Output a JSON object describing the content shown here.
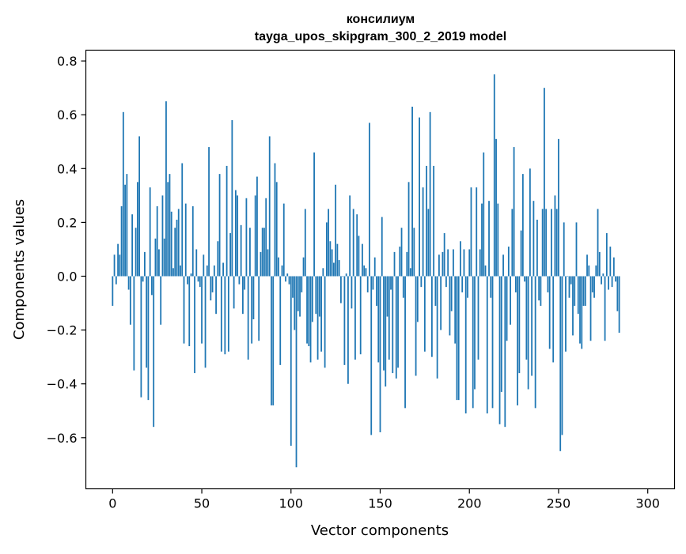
{
  "chart_data": {
    "type": "bar",
    "title": "консилиум",
    "subtitle": "tayga_upos_skipgram_300_2_2019 model",
    "xlabel": "Vector components",
    "ylabel": "Components values",
    "xlim": [
      -15,
      315
    ],
    "ylim": [
      -0.79,
      0.84
    ],
    "xticks": [
      0,
      50,
      100,
      150,
      200,
      250,
      300
    ],
    "yticks": [
      -0.6,
      -0.4,
      -0.2,
      0.0,
      0.2,
      0.4,
      0.6,
      0.8
    ],
    "xtick_labels": [
      "0",
      "50",
      "100",
      "150",
      "200",
      "250",
      "300"
    ],
    "ytick_labels": [
      "−0.6",
      "−0.4",
      "−0.2",
      "0.0",
      "0.2",
      "0.4",
      "0.6",
      "0.8"
    ],
    "grid": false,
    "bar_color": "#1f77b4",
    "values": [
      -0.11,
      0.08,
      -0.03,
      0.12,
      0.08,
      0.26,
      0.61,
      0.34,
      0.38,
      -0.05,
      -0.18,
      0.23,
      -0.35,
      0.18,
      0.35,
      0.52,
      -0.45,
      -0.02,
      0.09,
      -0.34,
      -0.46,
      0.33,
      -0.07,
      -0.56,
      0.14,
      0.26,
      0.1,
      -0.18,
      0.3,
      0.14,
      0.65,
      0.35,
      0.38,
      0.24,
      0.03,
      0.18,
      0.21,
      0.25,
      0.04,
      0.42,
      -0.25,
      0.27,
      -0.03,
      -0.26,
      0.01,
      0.26,
      -0.36,
      0.1,
      -0.02,
      -0.04,
      -0.25,
      0.08,
      -0.34,
      0.04,
      0.48,
      -0.09,
      -0.06,
      0.04,
      -0.14,
      0.13,
      0.38,
      -0.28,
      0.05,
      -0.29,
      0.41,
      -0.28,
      0.16,
      0.58,
      -0.12,
      0.32,
      0.3,
      -0.03,
      0.19,
      -0.14,
      -0.05,
      0.29,
      -0.31,
      0.18,
      -0.25,
      -0.16,
      0.3,
      0.37,
      -0.24,
      0.09,
      0.18,
      0.18,
      0.29,
      0.1,
      0.52,
      -0.48,
      -0.48,
      0.42,
      0.35,
      0.07,
      -0.33,
      0.04,
      0.27,
      -0.02,
      0.01,
      -0.03,
      -0.63,
      -0.08,
      -0.2,
      -0.71,
      -0.13,
      -0.15,
      -0.06,
      0.07,
      0.25,
      -0.25,
      -0.26,
      -0.32,
      -0.17,
      0.46,
      -0.14,
      -0.31,
      -0.15,
      -0.28,
      0.03,
      -0.34,
      0.2,
      0.25,
      0.13,
      0.1,
      0.05,
      0.34,
      0.12,
      0.06,
      -0.1,
      0.0,
      -0.33,
      0.01,
      -0.4,
      0.3,
      -0.12,
      0.25,
      -0.31,
      0.23,
      0.15,
      -0.29,
      0.12,
      0.04,
      0.03,
      -0.06,
      0.57,
      -0.59,
      -0.05,
      0.07,
      -0.11,
      -0.32,
      -0.58,
      0.22,
      -0.35,
      -0.41,
      -0.15,
      -0.31,
      -0.05,
      -0.36,
      0.09,
      -0.38,
      -0.34,
      0.11,
      0.18,
      -0.08,
      -0.49,
      0.09,
      0.35,
      0.03,
      0.63,
      0.18,
      -0.37,
      -0.17,
      0.59,
      -0.04,
      0.33,
      -0.28,
      0.41,
      0.25,
      0.61,
      -0.3,
      0.41,
      -0.11,
      -0.38,
      0.08,
      -0.2,
      0.09,
      0.16,
      -0.04,
      0.1,
      -0.22,
      -0.13,
      0.1,
      -0.25,
      -0.46,
      -0.46,
      0.13,
      -0.06,
      0.1,
      -0.51,
      -0.08,
      0.1,
      0.33,
      -0.49,
      -0.42,
      0.33,
      -0.31,
      0.1,
      0.27,
      0.46,
      0.04,
      -0.51,
      0.28,
      -0.08,
      -0.49,
      0.75,
      0.51,
      0.27,
      -0.55,
      -0.43,
      0.08,
      -0.56,
      -0.24,
      0.11,
      -0.18,
      0.25,
      0.48,
      -0.06,
      -0.48,
      -0.36,
      0.17,
      0.38,
      -0.02,
      -0.31,
      -0.42,
      0.4,
      -0.37,
      0.28,
      -0.49,
      0.21,
      -0.09,
      -0.11,
      0.25,
      0.7,
      0.25,
      -0.06,
      -0.27,
      0.25,
      -0.32,
      0.3,
      0.25,
      0.51,
      -0.65,
      -0.59,
      0.2,
      -0.28,
      0.0,
      -0.08,
      -0.03,
      -0.22,
      -0.11,
      0.2,
      -0.14,
      -0.25,
      -0.27,
      -0.11,
      -0.11,
      0.08,
      0.04,
      -0.24,
      -0.06,
      -0.08,
      0.04,
      0.25,
      0.09,
      -0.03,
      0.01,
      -0.24,
      0.16,
      -0.05,
      0.11,
      -0.04,
      0.07,
      -0.02,
      -0.13,
      -0.21
    ]
  }
}
